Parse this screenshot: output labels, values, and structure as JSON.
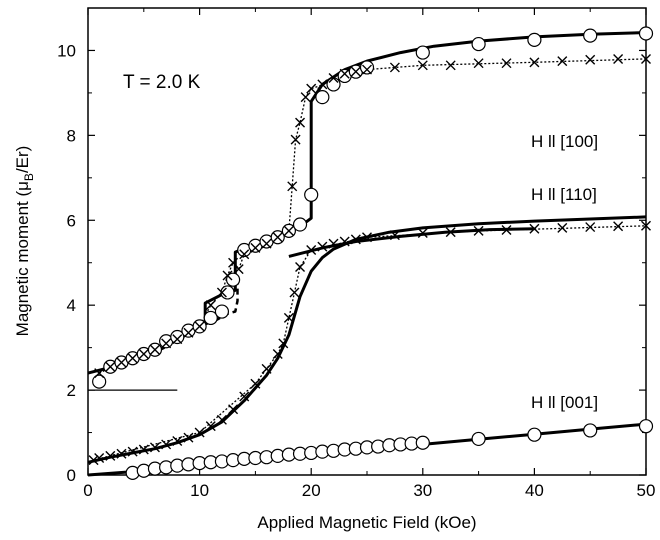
{
  "chart_data": {
    "type": "scatter",
    "xlabel": "Applied Magnetic Field (kOe)",
    "ylabel_main": "Magnetic moment (",
    "ylabel_mu": "μ",
    "ylabel_sub": "B",
    "ylabel_tail": "/Er)",
    "xlim": [
      0,
      50
    ],
    "ylim": [
      0,
      11
    ],
    "xticks": [
      0,
      10,
      20,
      30,
      40,
      50
    ],
    "yticks": [
      0,
      2,
      4,
      6,
      8,
      10
    ],
    "grid": false,
    "legend": "none",
    "annotations": {
      "temperature": "T = 2.0 K",
      "h100": "H ll [100]",
      "h110": "H ll [110]",
      "h001": "H ll [001]"
    },
    "series": [
      {
        "marker": "circle",
        "points": [
          [
            1,
            2.2
          ],
          [
            2,
            2.55
          ],
          [
            3,
            2.65
          ],
          [
            4,
            2.75
          ],
          [
            5,
            2.85
          ],
          [
            6,
            2.95
          ],
          [
            7,
            3.15
          ],
          [
            8,
            3.25
          ],
          [
            9,
            3.4
          ],
          [
            10,
            3.5
          ],
          [
            11,
            3.7
          ],
          [
            12,
            3.85
          ],
          [
            12.5,
            4.3
          ],
          [
            13,
            4.6
          ],
          [
            14,
            5.3
          ],
          [
            15,
            5.4
          ],
          [
            16,
            5.5
          ],
          [
            17,
            5.6
          ],
          [
            18,
            5.75
          ],
          [
            19,
            5.9
          ],
          [
            20,
            6.6
          ],
          [
            21,
            8.9
          ],
          [
            22,
            9.2
          ],
          [
            23,
            9.4
          ],
          [
            24,
            9.5
          ],
          [
            25,
            9.6
          ],
          [
            30,
            9.95
          ],
          [
            35,
            10.15
          ],
          [
            40,
            10.25
          ],
          [
            45,
            10.35
          ],
          [
            50,
            10.4
          ]
        ]
      },
      {
        "marker": "cross",
        "points": [
          [
            1,
            2.4
          ],
          [
            2,
            2.55
          ],
          [
            3,
            2.65
          ],
          [
            4,
            2.75
          ],
          [
            5,
            2.85
          ],
          [
            6,
            2.95
          ],
          [
            7,
            3.1
          ],
          [
            8,
            3.2
          ],
          [
            9,
            3.35
          ],
          [
            10,
            3.5
          ],
          [
            11,
            4.0
          ],
          [
            12,
            4.3
          ],
          [
            12.5,
            4.7
          ],
          [
            13,
            5.0
          ],
          [
            13.5,
            4.85
          ],
          [
            14,
            5.2
          ],
          [
            15,
            5.35
          ],
          [
            16,
            5.45
          ],
          [
            17,
            5.6
          ],
          [
            18,
            5.75
          ],
          [
            18.3,
            6.8
          ],
          [
            18.6,
            7.9
          ],
          [
            19,
            8.3
          ],
          [
            19.5,
            8.9
          ],
          [
            20,
            9.1
          ],
          [
            21,
            9.2
          ],
          [
            22,
            9.35
          ],
          [
            23,
            9.45
          ],
          [
            24,
            9.5
          ],
          [
            25,
            9.55
          ],
          [
            27.5,
            9.6
          ],
          [
            30,
            9.65
          ],
          [
            32.5,
            9.65
          ],
          [
            35,
            9.7
          ],
          [
            37.5,
            9.7
          ],
          [
            40,
            9.72
          ],
          [
            42.5,
            9.75
          ],
          [
            45,
            9.78
          ],
          [
            47.5,
            9.8
          ],
          [
            50,
            9.8
          ]
        ]
      },
      {
        "marker": "cross",
        "points": [
          [
            0.5,
            0.35
          ],
          [
            1,
            0.4
          ],
          [
            2,
            0.45
          ],
          [
            3,
            0.5
          ],
          [
            4,
            0.55
          ],
          [
            5,
            0.6
          ],
          [
            6,
            0.65
          ],
          [
            7,
            0.72
          ],
          [
            8,
            0.8
          ],
          [
            9,
            0.88
          ],
          [
            10,
            1.0
          ],
          [
            11,
            1.15
          ],
          [
            12,
            1.3
          ],
          [
            13,
            1.55
          ],
          [
            14,
            1.85
          ],
          [
            15,
            2.15
          ],
          [
            16,
            2.5
          ],
          [
            17,
            2.85
          ],
          [
            17.5,
            3.1
          ],
          [
            18,
            3.7
          ],
          [
            18.5,
            4.3
          ],
          [
            19,
            4.9
          ],
          [
            20,
            5.3
          ],
          [
            21,
            5.38
          ],
          [
            22,
            5.45
          ],
          [
            23,
            5.5
          ],
          [
            24,
            5.55
          ],
          [
            25,
            5.6
          ],
          [
            27.5,
            5.65
          ],
          [
            30,
            5.7
          ],
          [
            32.5,
            5.72
          ],
          [
            35,
            5.75
          ],
          [
            37.5,
            5.77
          ],
          [
            40,
            5.8
          ],
          [
            42.5,
            5.82
          ],
          [
            45,
            5.84
          ],
          [
            47.5,
            5.86
          ],
          [
            50,
            5.87
          ]
        ]
      },
      {
        "marker": "circle",
        "points": [
          [
            4,
            0.05
          ],
          [
            5,
            0.1
          ],
          [
            6,
            0.15
          ],
          [
            7,
            0.18
          ],
          [
            8,
            0.22
          ],
          [
            9,
            0.25
          ],
          [
            10,
            0.28
          ],
          [
            11,
            0.3
          ],
          [
            12,
            0.32
          ],
          [
            13,
            0.35
          ],
          [
            14,
            0.38
          ],
          [
            15,
            0.4
          ],
          [
            16,
            0.42
          ],
          [
            17,
            0.45
          ],
          [
            18,
            0.48
          ],
          [
            19,
            0.5
          ],
          [
            20,
            0.52
          ],
          [
            21,
            0.55
          ],
          [
            22,
            0.57
          ],
          [
            23,
            0.6
          ],
          [
            24,
            0.62
          ],
          [
            25,
            0.65
          ],
          [
            26,
            0.67
          ],
          [
            27,
            0.7
          ],
          [
            28,
            0.72
          ],
          [
            29,
            0.74
          ],
          [
            30,
            0.76
          ],
          [
            35,
            0.85
          ],
          [
            40,
            0.95
          ],
          [
            45,
            1.05
          ],
          [
            50,
            1.15
          ]
        ]
      }
    ],
    "fit_lines": [
      {
        "style": "solid",
        "points": [
          [
            0,
            2.4
          ],
          [
            3,
            2.6
          ],
          [
            6,
            2.9
          ],
          [
            6.8,
            3.0
          ],
          [
            6.8,
            3.2
          ],
          [
            10,
            3.45
          ],
          [
            10.5,
            3.55
          ],
          [
            10.5,
            4.05
          ],
          [
            12,
            4.25
          ],
          [
            13.2,
            4.35
          ],
          [
            13.2,
            5.25
          ],
          [
            15,
            5.45
          ],
          [
            17,
            5.62
          ],
          [
            19,
            5.85
          ],
          [
            20,
            6.05
          ],
          [
            20,
            8.8
          ],
          [
            21,
            9.2
          ],
          [
            23,
            9.55
          ],
          [
            25,
            9.75
          ],
          [
            28,
            9.95
          ],
          [
            31,
            10.1
          ],
          [
            35,
            10.22
          ],
          [
            40,
            10.32
          ],
          [
            45,
            10.38
          ],
          [
            50,
            10.42
          ]
        ]
      },
      {
        "style": "dashed",
        "points": [
          [
            10.5,
            3.55
          ],
          [
            11.5,
            3.65
          ],
          [
            12.5,
            3.8
          ],
          [
            13.2,
            3.85
          ],
          [
            13.4,
            4.1
          ],
          [
            13.4,
            4.6
          ]
        ]
      },
      {
        "style": "solid",
        "points": [
          [
            0,
            0.3
          ],
          [
            2,
            0.42
          ],
          [
            4,
            0.52
          ],
          [
            6,
            0.62
          ],
          [
            8,
            0.76
          ],
          [
            10,
            0.95
          ],
          [
            12,
            1.25
          ],
          [
            14,
            1.75
          ],
          [
            16,
            2.35
          ],
          [
            17,
            2.75
          ],
          [
            18,
            3.3
          ],
          [
            19,
            4.2
          ],
          [
            20,
            4.8
          ],
          [
            21,
            5.12
          ],
          [
            22,
            5.32
          ],
          [
            24,
            5.55
          ],
          [
            27,
            5.72
          ],
          [
            30,
            5.82
          ],
          [
            35,
            5.92
          ],
          [
            40,
            5.98
          ],
          [
            45,
            6.03
          ],
          [
            50,
            6.08
          ]
        ]
      },
      {
        "style": "solid",
        "points": [
          [
            18,
            5.15
          ],
          [
            21,
            5.35
          ],
          [
            24,
            5.5
          ],
          [
            28,
            5.62
          ],
          [
            32,
            5.72
          ],
          [
            36,
            5.78
          ],
          [
            40,
            5.8
          ]
        ]
      },
      {
        "style": "solid",
        "points": [
          [
            0,
            0
          ],
          [
            5,
            0.1
          ],
          [
            10,
            0.22
          ],
          [
            15,
            0.35
          ],
          [
            20,
            0.48
          ],
          [
            25,
            0.6
          ],
          [
            30,
            0.72
          ],
          [
            35,
            0.84
          ],
          [
            40,
            0.96
          ],
          [
            45,
            1.08
          ],
          [
            50,
            1.2
          ]
        ]
      },
      {
        "style": "thin",
        "points": [
          [
            0,
            2.0
          ],
          [
            8,
            2.0
          ]
        ]
      },
      {
        "style": "dotted",
        "points": [
          [
            1,
            2.4
          ],
          [
            10,
            3.5
          ],
          [
            11,
            4.0
          ],
          [
            12,
            4.3
          ],
          [
            12.5,
            4.7
          ],
          [
            13,
            5.0
          ],
          [
            13.5,
            4.85
          ],
          [
            14,
            5.2
          ],
          [
            17,
            5.6
          ],
          [
            18,
            5.75
          ],
          [
            18.3,
            6.8
          ],
          [
            18.6,
            7.9
          ],
          [
            19,
            8.3
          ],
          [
            19.5,
            8.9
          ],
          [
            20,
            9.1
          ],
          [
            25,
            9.55
          ],
          [
            30,
            9.65
          ],
          [
            40,
            9.72
          ],
          [
            50,
            9.8
          ]
        ]
      },
      {
        "style": "dotted",
        "points": [
          [
            0.5,
            0.35
          ],
          [
            10,
            1.0
          ],
          [
            15,
            2.15
          ],
          [
            17,
            2.85
          ],
          [
            17.5,
            3.1
          ],
          [
            18,
            3.7
          ],
          [
            18.5,
            4.3
          ],
          [
            19,
            4.9
          ],
          [
            20,
            5.3
          ],
          [
            25,
            5.6
          ],
          [
            35,
            5.75
          ],
          [
            50,
            5.87
          ]
        ]
      }
    ]
  }
}
